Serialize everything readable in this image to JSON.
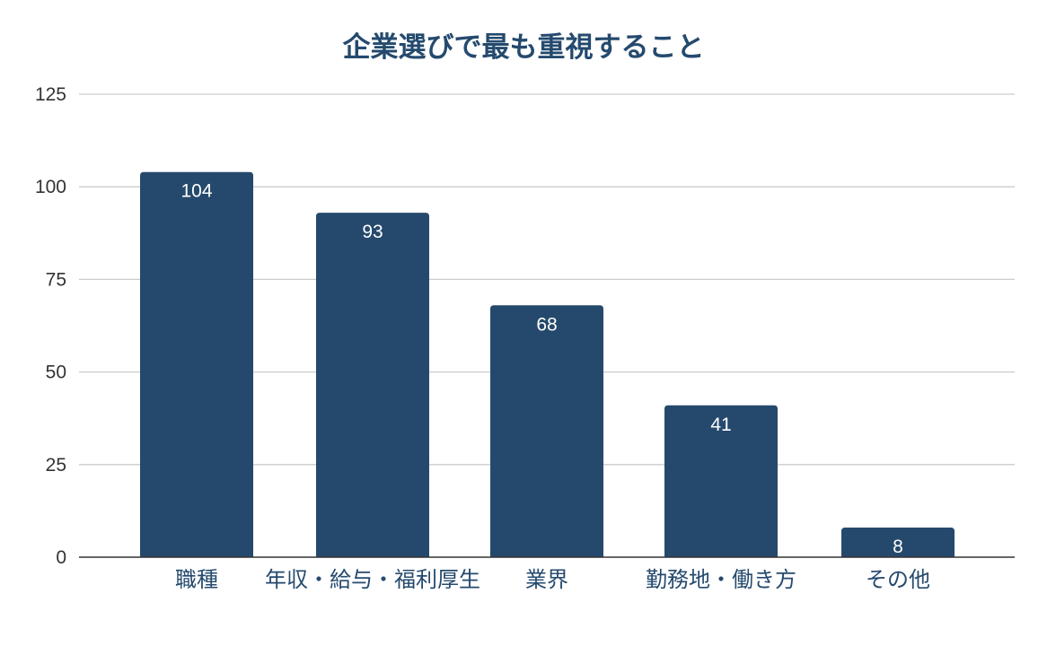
{
  "chart_data": {
    "type": "bar",
    "title": "企業選びで最も重視すること",
    "xlabel": "",
    "ylabel": "",
    "categories": [
      "職種",
      "年収・給与・福利厚生",
      "業界",
      "勤務地・働き方",
      "その他"
    ],
    "values": [
      104,
      93,
      68,
      41,
      8
    ],
    "data_labels": [
      "104",
      "93",
      "68",
      "41",
      "8"
    ],
    "ylim": [
      0,
      125
    ],
    "yticks": [
      0,
      25,
      50,
      75,
      100,
      125
    ],
    "ytick_labels": [
      "0",
      "25",
      "50",
      "75",
      "100",
      "125"
    ],
    "grid": true,
    "legend": "none",
    "colors": {
      "bar": "#25496c",
      "title": "#254a6e",
      "category_label": "#254a6e",
      "grid": "#cccccc",
      "axis": "#333333"
    }
  }
}
